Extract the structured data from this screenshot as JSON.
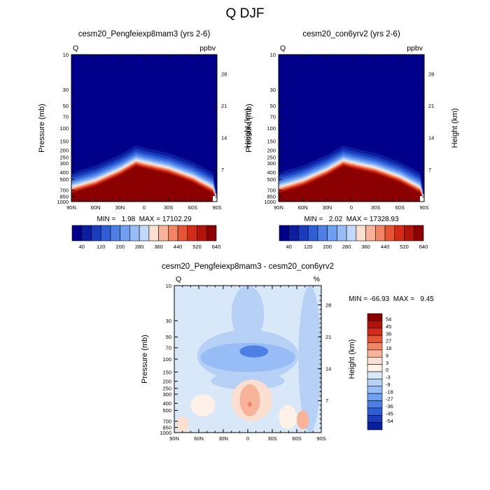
{
  "figure": {
    "title": "Q DJF"
  },
  "chart_data": [
    {
      "type": "heatmap",
      "title": "cesm20_Pengfeiexp8mam3 (yrs 2-6)",
      "variable": "Q",
      "units": "ppbv",
      "xlabel": "",
      "ylabel": "Pressure (mb)",
      "y2label": "Height (km)",
      "x_ticks": [
        "90N",
        "60N",
        "30N",
        "0",
        "30S",
        "60S",
        "90S"
      ],
      "pressure_ticks": [
        "10",
        "30",
        "50",
        "70",
        "100",
        "150",
        "200",
        "250",
        "300",
        "400",
        "500",
        "700",
        "850",
        "1000"
      ],
      "height_ticks": [
        "28",
        "21",
        "14",
        "7"
      ],
      "min": "1.98",
      "max": "17102.29",
      "stats_text": "MIN =   1.98  MAX = 17102.29",
      "colorbar_labels": [
        "40",
        "120",
        "200",
        "280",
        "360",
        "440",
        "520",
        "640"
      ],
      "colors": [
        "#00008b",
        "#0a1ea0",
        "#1a3cbe",
        "#2f5fd6",
        "#4d7fe4",
        "#6f9ff0",
        "#97bcf6",
        "#c3d9fb",
        "#fbdfd0",
        "#f7b49a",
        "#f28563",
        "#e85535",
        "#d42a17",
        "#b3140a",
        "#8b0000"
      ],
      "levels": [
        0,
        40,
        80,
        120,
        160,
        200,
        240,
        280,
        320,
        360,
        400,
        440,
        520,
        600,
        640
      ],
      "boundary_profile": [
        [
          90,
          700
        ],
        [
          60,
          560
        ],
        [
          30,
          400
        ],
        [
          10,
          300
        ],
        [
          0,
          320
        ],
        [
          -30,
          380
        ],
        [
          -60,
          500
        ],
        [
          -85,
          700
        ]
      ]
    },
    {
      "type": "heatmap",
      "title": "cesm20_con6yrv2 (yrs 2-6)",
      "variable": "Q",
      "units": "ppbv",
      "xlabel": "",
      "ylabel": "Pressure (mb)",
      "y2label": "Height (km)",
      "x_ticks": [
        "90N",
        "60N",
        "30N",
        "0",
        "30S",
        "60S",
        "90S"
      ],
      "pressure_ticks": [
        "10",
        "30",
        "50",
        "70",
        "100",
        "150",
        "200",
        "250",
        "300",
        "400",
        "500",
        "700",
        "850",
        "1000"
      ],
      "height_ticks": [
        "28",
        "21",
        "14",
        "7"
      ],
      "min": "2.02",
      "max": "17328.93",
      "stats_text": "MIN =   2.02  MAX = 17328.93",
      "colorbar_labels": [
        "40",
        "120",
        "200",
        "280",
        "360",
        "440",
        "520",
        "640"
      ],
      "colors": [
        "#00008b",
        "#0a1ea0",
        "#1a3cbe",
        "#2f5fd6",
        "#4d7fe4",
        "#6f9ff0",
        "#97bcf6",
        "#c3d9fb",
        "#fbdfd0",
        "#f7b49a",
        "#f28563",
        "#e85535",
        "#d42a17",
        "#b3140a",
        "#8b0000"
      ],
      "levels": [
        0,
        40,
        80,
        120,
        160,
        200,
        240,
        280,
        320,
        360,
        400,
        440,
        520,
        600,
        640
      ],
      "boundary_profile": [
        [
          90,
          700
        ],
        [
          60,
          560
        ],
        [
          30,
          400
        ],
        [
          10,
          300
        ],
        [
          0,
          320
        ],
        [
          -30,
          380
        ],
        [
          -60,
          500
        ],
        [
          -85,
          700
        ]
      ]
    },
    {
      "type": "heatmap",
      "title": "cesm20_Pengfeiexp8mam3 - cesm20_con6yrv2",
      "variable": "Q",
      "units": "%",
      "xlabel": "",
      "ylabel": "Pressure (mb)",
      "y2label": "Height (km)",
      "x_ticks": [
        "90N",
        "60N",
        "30N",
        "0",
        "30S",
        "60S",
        "90S"
      ],
      "pressure_ticks": [
        "10",
        "30",
        "50",
        "70",
        "100",
        "150",
        "200",
        "250",
        "300",
        "400",
        "500",
        "700",
        "850",
        "1000"
      ],
      "height_ticks": [
        "28",
        "21",
        "14",
        "7"
      ],
      "min": "-66.93",
      "max": "9.45",
      "stats_text": "MIN = -66.93  MAX =   9.45",
      "colorbar_labels": [
        "54",
        "45",
        "36",
        "27",
        "18",
        "9",
        "3",
        "0",
        "-3",
        "-9",
        "-18",
        "-27",
        "-36",
        "-45",
        "-54"
      ],
      "colors": [
        "#8b0000",
        "#b3140a",
        "#d42a17",
        "#e85535",
        "#f28563",
        "#f7b49a",
        "#fbdfd0",
        "#fff1e8",
        "#d8e8f8",
        "#b6d0f6",
        "#97bcf6",
        "#6f9ff0",
        "#4d7fe4",
        "#2f5fd6",
        "#1a3cbe",
        "#0a1ea0",
        "#00008b"
      ],
      "levels": [
        54,
        45,
        36,
        27,
        18,
        9,
        3,
        0,
        -3,
        -9,
        -18,
        -27,
        -36,
        -45,
        -54
      ]
    }
  ]
}
